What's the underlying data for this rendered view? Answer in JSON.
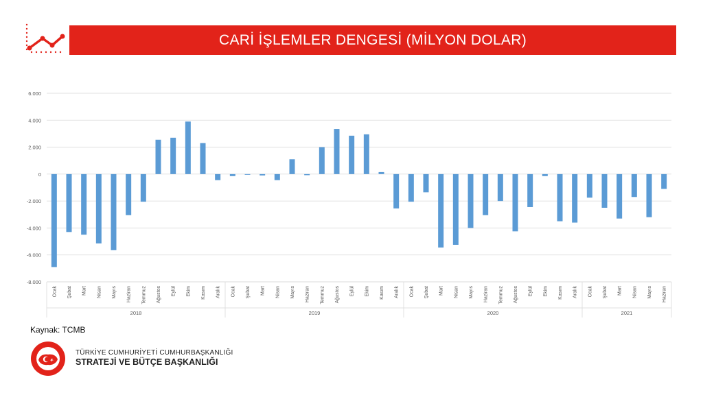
{
  "header": {
    "title": "CARİ İŞLEMLER DENGESİ (MİLYON DOLAR)",
    "icon": "line-chart-icon",
    "accent_color": "#e2231a"
  },
  "source": "Kaynak: TCMB",
  "organization": {
    "line1": "TÜRKİYE CUMHURİYETİ CUMHURBAŞKANLIĞI",
    "line2": "STRATEJİ VE BÜTÇE BAŞKANLIĞI",
    "seal_text": "T.C. CUMHURBAŞKANLIĞI STRATEJİ VE BÜTÇE BAŞKANLIĞI"
  },
  "chart_data": {
    "type": "bar",
    "title": "",
    "xlabel": "",
    "ylabel": "",
    "ylim": [
      -8000,
      6000
    ],
    "yticks": [
      -8000,
      -6000,
      -4000,
      -2000,
      0,
      2000,
      4000,
      6000
    ],
    "ytick_labels": [
      "-8.000",
      "-6.000",
      "-4.000",
      "-2.000",
      "0",
      "2.000",
      "4.000",
      "6.000"
    ],
    "grid": true,
    "bar_color": "#5b9bd5",
    "year_groups": [
      {
        "year": "2018",
        "count": 12
      },
      {
        "year": "2019",
        "count": 12
      },
      {
        "year": "2020",
        "count": 12
      },
      {
        "year": "2021",
        "count": 6
      }
    ],
    "categories": [
      "Ocak",
      "Şubat",
      "Mart",
      "Nisan",
      "Mayıs",
      "Haziran",
      "Temmuz",
      "Ağustos",
      "Eylül",
      "Ekim",
      "Kasım",
      "Aralık",
      "Ocak",
      "Şubat",
      "Mart",
      "Nisan",
      "Mayıs",
      "Haziran",
      "Temmuz",
      "Ağustos",
      "Eylül",
      "Ekim",
      "Kasım",
      "Aralık",
      "Ocak",
      "Şubat",
      "Mart",
      "Nisan",
      "Mayıs",
      "Haziran",
      "Temmuz",
      "Ağustos",
      "Eylül",
      "Ekim",
      "Kasım",
      "Aralık",
      "Ocak",
      "Şubat",
      "Mart",
      "Nisan",
      "Mayıs",
      "Haziran"
    ],
    "values": [
      -6900,
      -4300,
      -4500,
      -5150,
      -5650,
      -3050,
      -2050,
      2550,
      2700,
      3900,
      2300,
      -450,
      -150,
      -50,
      -100,
      -450,
      1100,
      -80,
      2000,
      3350,
      2850,
      2950,
      150,
      -2550,
      -2050,
      -1350,
      -5450,
      -5250,
      -4000,
      -3050,
      -2000,
      -4250,
      -2450,
      -150,
      -3500,
      -3600,
      -1750,
      -2500,
      -3300,
      -1700,
      -3200,
      -1100
    ]
  }
}
